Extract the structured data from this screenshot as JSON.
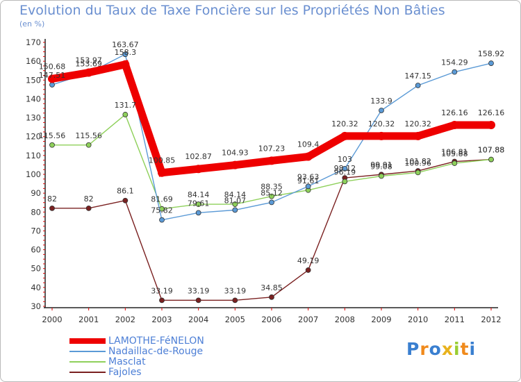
{
  "page": {
    "title": "Evolution du Taux de Taxe Foncière sur les Propriétés Non Bâties",
    "subtitle": "(en %)",
    "logo": "Proxiti"
  },
  "chart_data": {
    "type": "line",
    "title": "Evolution du Taux de Taxe Foncière sur les Propriétés Non Bâties",
    "ylabel": "(en %)",
    "xlabel": "",
    "categories": [
      "2000",
      "2001",
      "2002",
      "2003",
      "2004",
      "2005",
      "2006",
      "2007",
      "2008",
      "2009",
      "2010",
      "2011",
      "2012"
    ],
    "ylim": [
      30,
      170
    ],
    "yticks": [
      30,
      40,
      50,
      60,
      70,
      80,
      90,
      100,
      110,
      120,
      130,
      140,
      150,
      160,
      170
    ],
    "grid": false,
    "legend_position": "bottom-left",
    "series": [
      {
        "name": "LAMOTHE-FéNELON",
        "color": "#ee0000",
        "values": [
          150.68,
          153.97,
          158.3,
          100.85,
          102.87,
          104.93,
          107.23,
          109.4,
          120.32,
          120.32,
          120.32,
          126.16,
          126.16
        ],
        "labels": [
          "150.68",
          "153.97",
          "158.3",
          "100.85",
          "102.87",
          "104.93",
          "107.23",
          "109.4",
          "120.32",
          "120.32",
          "120.32",
          "126.16",
          "126.16"
        ]
      },
      {
        "name": "Nadaillac-de-Rouge",
        "color": "#5b9ad6",
        "values": [
          147.51,
          153.69,
          163.67,
          75.82,
          79.61,
          81.07,
          85.12,
          93.63,
          103,
          133.9,
          147.15,
          154.29,
          158.92
        ],
        "labels": [
          "147.51",
          "153.69",
          "163.67",
          "75.82",
          "79.61",
          "81.07",
          "85.12",
          "93.63",
          "103",
          "133.9",
          "147.15",
          "154.29",
          "158.92"
        ]
      },
      {
        "name": "Masclat",
        "color": "#8ed05a",
        "values": [
          115.56,
          115.56,
          131.7,
          81.69,
          84.14,
          84.14,
          88.35,
          91.61,
          96.19,
          99.08,
          100.96,
          105.88,
          107.88
        ],
        "labels": [
          "115.56",
          "115.56",
          "131.7",
          "81.69",
          "84.14",
          "84.14",
          "88.35",
          "91.61",
          "96.19",
          "99.08",
          "100.96",
          "105.88",
          "107.88"
        ]
      },
      {
        "name": "Fajoles",
        "color": "#7a2020",
        "values": [
          82,
          82,
          86.1,
          33.19,
          33.19,
          33.19,
          34.85,
          49.19,
          98.12,
          99.91,
          101.82,
          106.81,
          107.88
        ],
        "labels": [
          "82",
          "82",
          "86.1",
          "33.19",
          "33.19",
          "33.19",
          "34.85",
          "49.19",
          "98.12",
          "99.91",
          "101.82",
          "106.81",
          "107.88"
        ]
      }
    ]
  }
}
